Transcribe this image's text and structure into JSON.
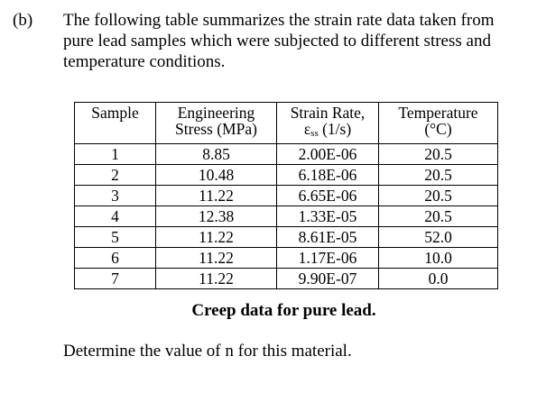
{
  "question": {
    "label": "(b)",
    "lines": [
      "The following table summarizes the strain rate data taken from",
      "pure lead samples which were subjected to different stress and",
      "temperature conditions."
    ]
  },
  "table": {
    "headers": [
      {
        "lines": [
          "Sample"
        ]
      },
      {
        "lines": [
          "Engineering",
          "Stress (MPa)"
        ]
      },
      {
        "line1": "Strain Rate,",
        "symbol": "ε",
        "subscript": "ss",
        "unit": "(1/s)"
      },
      {
        "lines": [
          "Temperature",
          "(°C)"
        ]
      }
    ],
    "rows": [
      [
        "1",
        "8.85",
        "2.00E-06",
        "20.5"
      ],
      [
        "2",
        "10.48",
        "6.18E-06",
        "20.5"
      ],
      [
        "3",
        "11.22",
        "6.65E-06",
        "20.5"
      ],
      [
        "4",
        "12.38",
        "1.33E-05",
        "20.5"
      ],
      [
        "5",
        "11.22",
        "8.61E-05",
        "52.0"
      ],
      [
        "6",
        "11.22",
        "1.17E-06",
        "10.0"
      ],
      [
        "7",
        "11.22",
        "9.90E-07",
        "0.0"
      ]
    ],
    "caption": "Creep data for pure lead."
  },
  "prompt": "Determine the value of n for this material."
}
